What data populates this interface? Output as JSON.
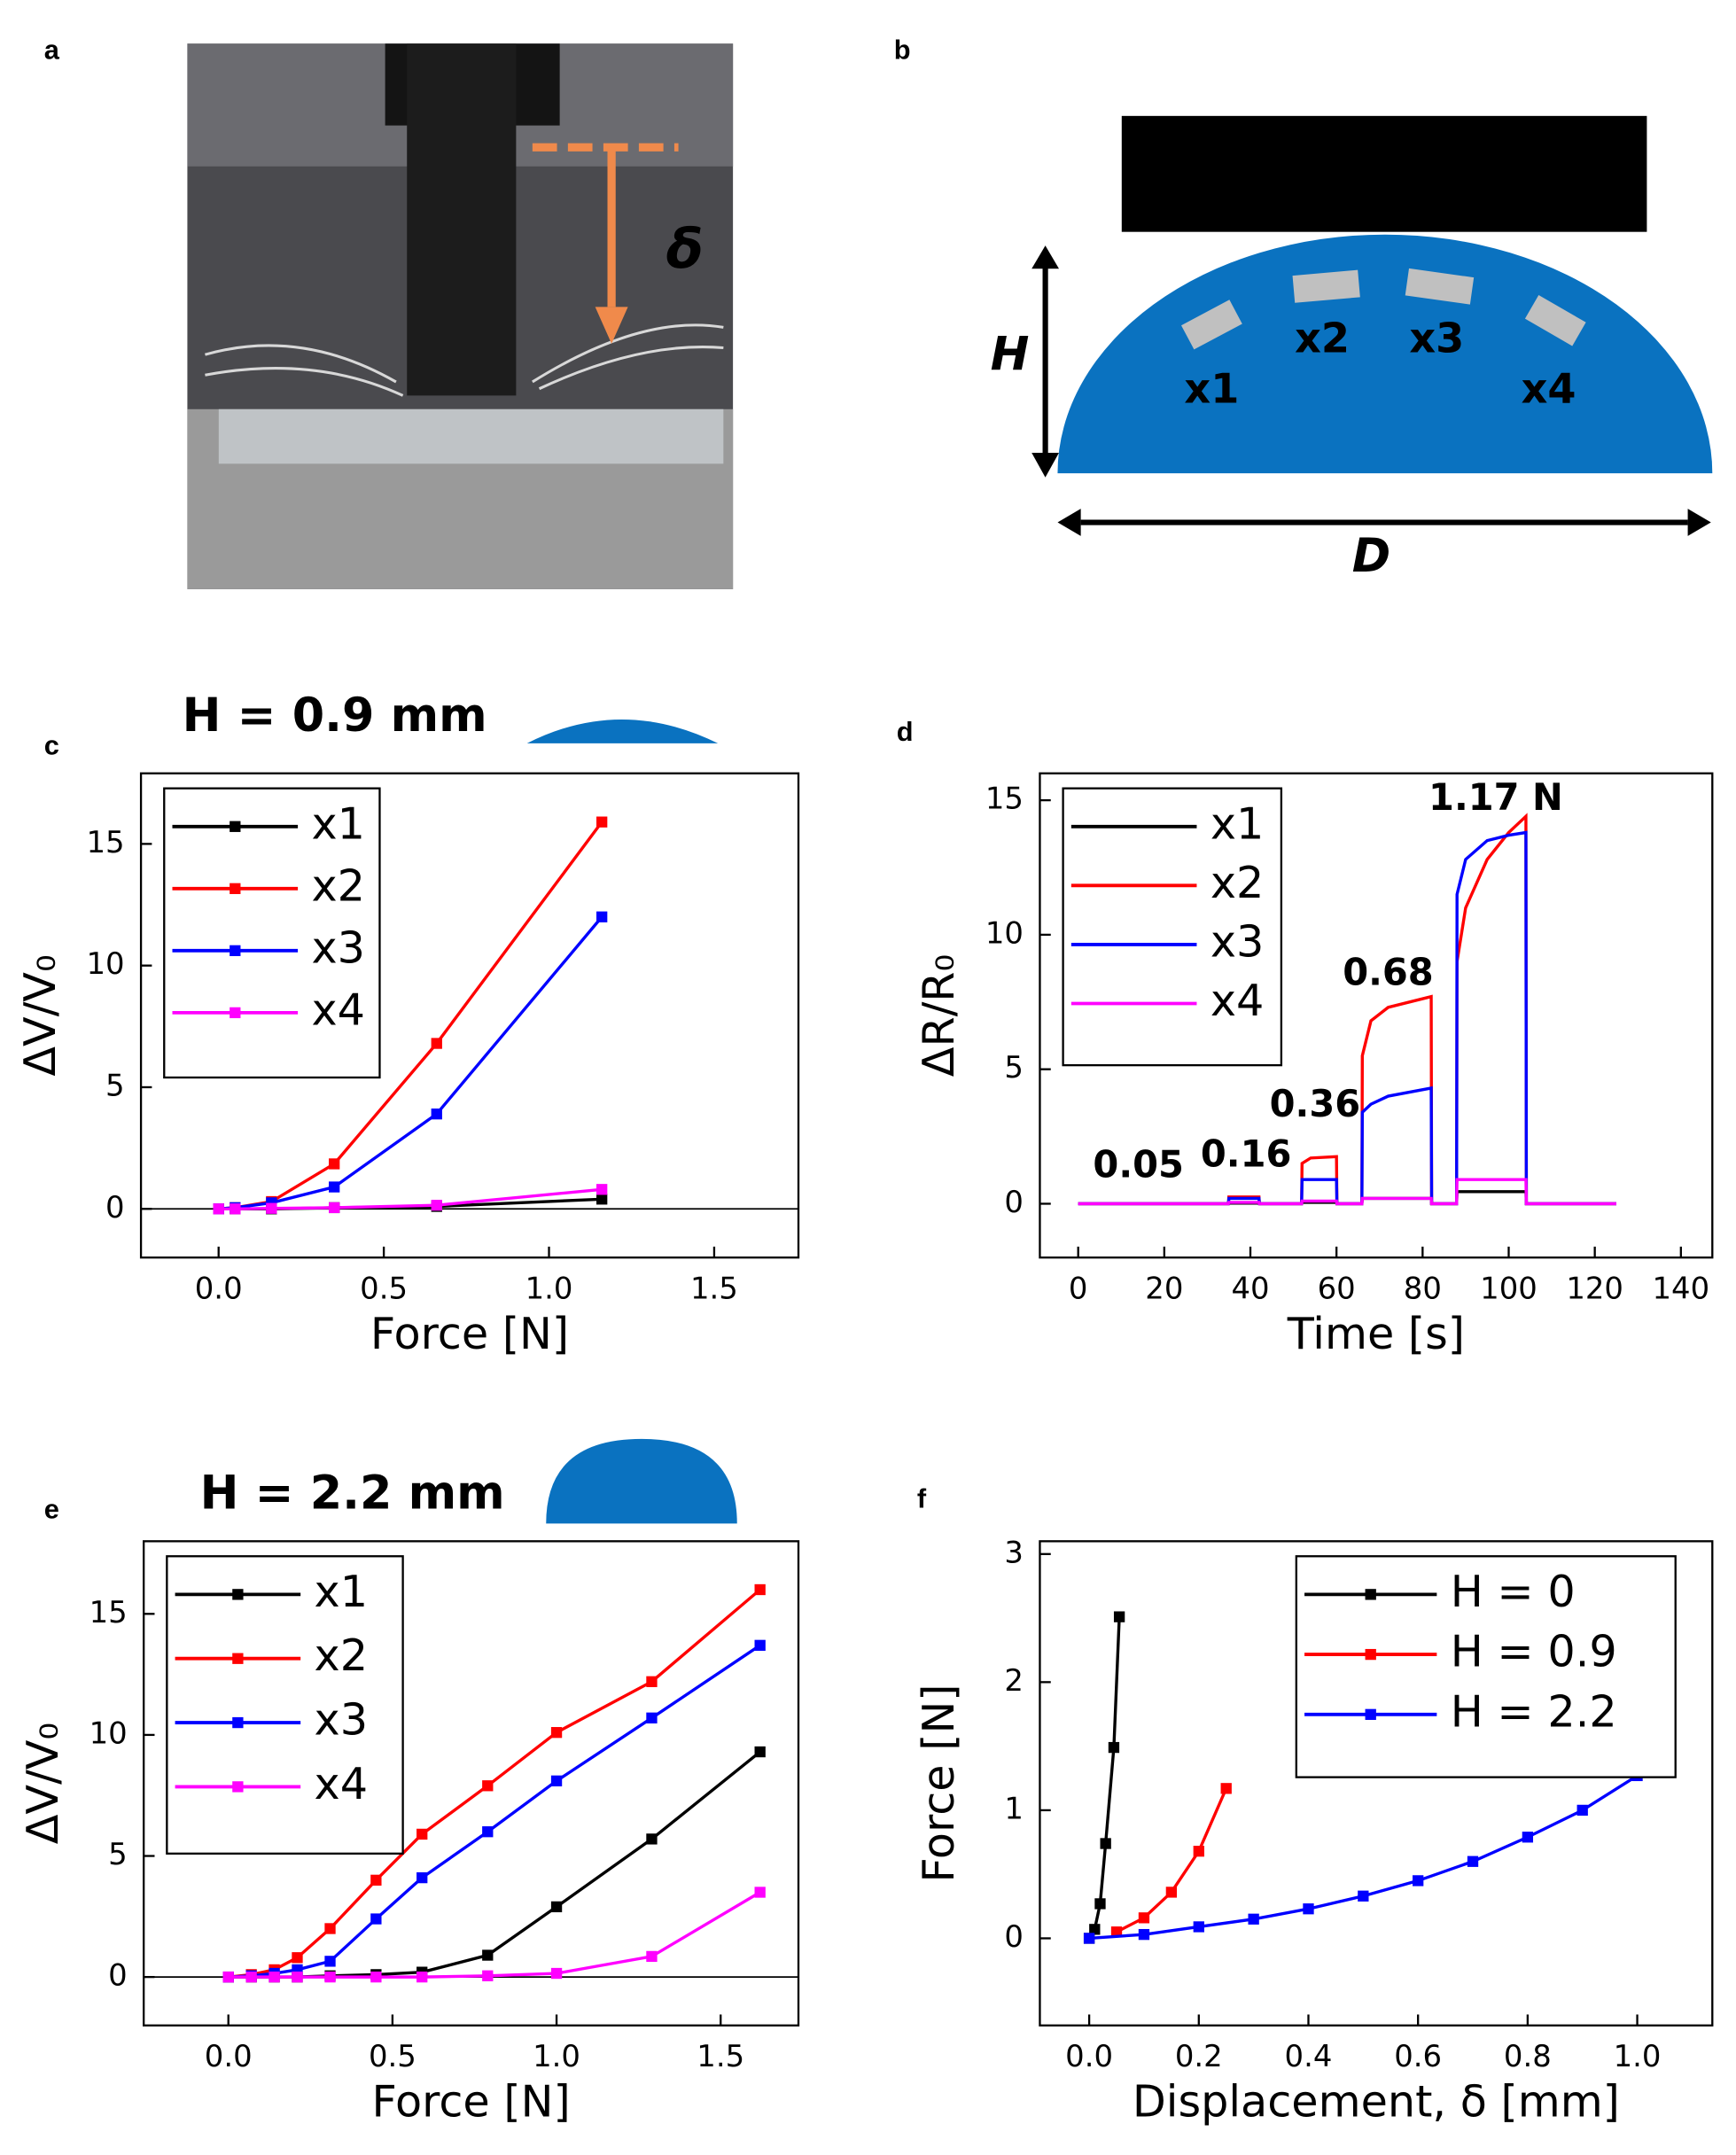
{
  "photo": {
    "panel_label": "a",
    "annotation": "δ"
  },
  "diagram": {
    "panel_label": "b",
    "height_label": "H",
    "width_label": "D",
    "sensors": [
      "x1",
      "x2",
      "x3",
      "x4"
    ]
  },
  "chart_data": [
    {
      "type": "line",
      "panel_label": "c",
      "title": "H = 0.9 mm",
      "x_label": "Force [N]",
      "y_label": "ΔV/V₀",
      "x": [
        0,
        0.05,
        0.16,
        0.35,
        0.66,
        1.16
      ],
      "series": [
        {
          "name": "x1",
          "color": "#000000",
          "values": [
            0,
            0,
            0,
            0.05,
            0.1,
            0.4
          ]
        },
        {
          "name": "x2",
          "color": "#ff0000",
          "values": [
            0,
            0.05,
            0.3,
            1.85,
            6.8,
            15.9
          ]
        },
        {
          "name": "x3",
          "color": "#0000ff",
          "values": [
            0,
            0.05,
            0.25,
            0.9,
            3.9,
            12.0
          ]
        },
        {
          "name": "x4",
          "color": "#ff00ff",
          "values": [
            0,
            0,
            0.02,
            0.05,
            0.15,
            0.8
          ]
        }
      ],
      "xlim": [
        -0.235,
        1.755
      ],
      "ylim": [
        -2,
        17.9
      ],
      "xticks": [
        {
          "value": 0,
          "label": "0.0"
        },
        0.5,
        {
          "value": 1,
          "label": "1.0"
        },
        1.5
      ],
      "yticks": [
        0,
        5,
        10,
        15
      ],
      "legend": "upper left",
      "markers": true,
      "zero_line": true
    },
    {
      "type": "line",
      "panel_label": "d",
      "x_label": "Time [s]",
      "y_label": "ΔR/R₀",
      "x": [
        0,
        34.9,
        35,
        42,
        42.1,
        51.9,
        52,
        54,
        60,
        60.1,
        65.9,
        66,
        68,
        72,
        82,
        82.1,
        87.9,
        88,
        90,
        95,
        100,
        104,
        104.1,
        125
      ],
      "series": [
        {
          "name": "x1",
          "color": "#000000",
          "values": [
            0,
            0,
            0.02,
            0.02,
            0,
            0,
            0.05,
            0.05,
            0.05,
            0,
            0,
            0.2,
            0.2,
            0.2,
            0.2,
            0,
            0,
            0.45,
            0.45,
            0.45,
            0.45,
            0.45,
            0,
            0
          ]
        },
        {
          "name": "x2",
          "color": "#ff0000",
          "values": [
            0,
            0,
            0.25,
            0.25,
            0,
            0,
            1.5,
            1.7,
            1.75,
            0,
            0,
            5.5,
            6.8,
            7.3,
            7.7,
            0,
            0,
            9,
            11,
            12.8,
            13.8,
            14.4,
            0,
            0
          ]
        },
        {
          "name": "x3",
          "color": "#0000ff",
          "values": [
            0,
            0,
            0.2,
            0.2,
            0,
            0,
            0.9,
            0.9,
            0.9,
            0,
            0,
            3.4,
            3.7,
            4.0,
            4.3,
            0,
            0,
            11.5,
            12.8,
            13.5,
            13.7,
            13.8,
            0,
            0
          ]
        },
        {
          "name": "x4",
          "color": "#ff00ff",
          "values": [
            0,
            0,
            0.05,
            0.05,
            0,
            0,
            0.1,
            0.1,
            0.1,
            0,
            0,
            0.2,
            0.2,
            0.2,
            0.2,
            0,
            0,
            0.9,
            0.9,
            0.9,
            0.9,
            0.9,
            0,
            0
          ]
        }
      ],
      "annotations": [
        "0.05",
        "0.16",
        "0.36",
        "0.68",
        "1.17 N"
      ],
      "xlim": [
        -8.9,
        147.3
      ],
      "ylim": [
        -2,
        16
      ],
      "xticks": [
        0,
        20,
        40,
        60,
        80,
        100,
        120,
        140
      ],
      "yticks": [
        0,
        5,
        10,
        15
      ],
      "legend": "upper left",
      "markers": false,
      "zero_line": false
    },
    {
      "type": "line",
      "panel_label": "e",
      "title": "H = 2.2 mm",
      "x_label": "Force [N]",
      "y_label": "ΔV/V₀",
      "x": [
        0,
        0.07,
        0.14,
        0.21,
        0.31,
        0.45,
        0.59,
        0.79,
        1.0,
        1.29,
        1.62
      ],
      "series": [
        {
          "name": "x1",
          "color": "#000000",
          "values": [
            0,
            0,
            0,
            0,
            0.05,
            0.1,
            0.2,
            0.9,
            2.9,
            5.7,
            9.3
          ]
        },
        {
          "name": "x2",
          "color": "#ff0000",
          "values": [
            0,
            0.1,
            0.3,
            0.8,
            2.0,
            4.0,
            5.9,
            7.9,
            10.1,
            12.2,
            16.0
          ]
        },
        {
          "name": "x3",
          "color": "#0000ff",
          "values": [
            0,
            0.05,
            0.15,
            0.3,
            0.65,
            2.4,
            4.1,
            6.0,
            8.1,
            10.7,
            13.7
          ]
        },
        {
          "name": "x4",
          "color": "#ff00ff",
          "values": [
            0,
            0,
            0,
            0,
            0,
            0,
            0,
            0.05,
            0.15,
            0.85,
            3.5
          ]
        }
      ],
      "xlim": [
        -0.258,
        1.737
      ],
      "ylim": [
        -2,
        18
      ],
      "xticks": [
        {
          "value": 0,
          "label": "0.0"
        },
        0.5,
        {
          "value": 1,
          "label": "1.0"
        },
        1.5
      ],
      "yticks": [
        0,
        5,
        10,
        15
      ],
      "legend": "upper left",
      "markers": true,
      "zero_line": true
    },
    {
      "type": "line",
      "panel_label": "f",
      "x_label": "Displacement, δ [mm]",
      "y_label": "Force [N]",
      "series": [
        {
          "name": "H = 0",
          "color": "#000000",
          "x": [
            0,
            0.01,
            0.02,
            0.03,
            0.045,
            0.055
          ],
          "values": [
            0,
            0.07,
            0.27,
            0.74,
            1.49,
            2.51
          ]
        },
        {
          "name": "H = 0.9",
          "color": "#ff0000",
          "x": [
            0.05,
            0.1,
            0.15,
            0.2,
            0.25
          ],
          "values": [
            0.05,
            0.16,
            0.36,
            0.68,
            1.17
          ]
        },
        {
          "name": "H = 2.2",
          "color": "#0000ff",
          "x": [
            0,
            0.1,
            0.2,
            0.3,
            0.4,
            0.5,
            0.6,
            0.7,
            0.8,
            0.9,
            1.0
          ],
          "values": [
            0,
            0.03,
            0.09,
            0.15,
            0.23,
            0.33,
            0.45,
            0.6,
            0.79,
            1.0,
            1.27
          ]
        }
      ],
      "xlim": [
        -0.09,
        1.137
      ],
      "ylim": [
        -0.68,
        3.1
      ],
      "xticks": [
        {
          "value": 0,
          "label": "0.0"
        },
        0.2,
        0.4,
        0.6,
        0.8,
        {
          "value": 1,
          "label": "1.0"
        }
      ],
      "yticks": [
        0,
        1,
        2,
        3
      ],
      "legend": "upper right",
      "markers": true,
      "zero_line": false
    }
  ]
}
